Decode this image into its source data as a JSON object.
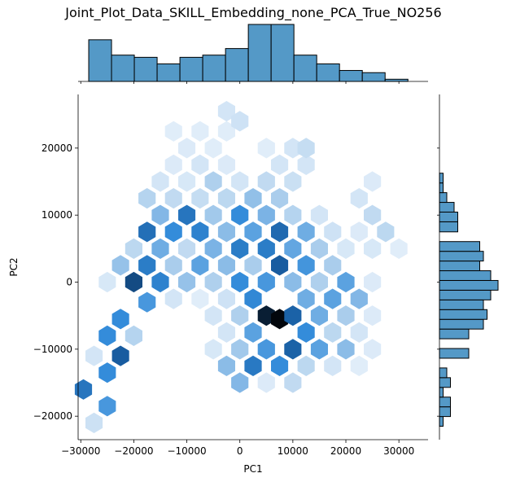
{
  "chart_data": {
    "type": "heatmap",
    "subtype": "hexbin joint plot with marginal histograms",
    "title": "Joint_Plot_Data_SKILL_Embedding_none_PCA_True_NO256",
    "xlabel": "PC1",
    "ylabel": "PC2",
    "xlim": [
      -30500,
      35500
    ],
    "ylim": [
      -23500,
      28000
    ],
    "xticks": [
      -30000,
      -20000,
      -10000,
      0,
      10000,
      20000,
      30000
    ],
    "xtick_labels": [
      "−30000",
      "−20000",
      "−10000",
      "0",
      "10000",
      "20000",
      "30000"
    ],
    "yticks": [
      -20000,
      -10000,
      0,
      10000,
      20000
    ],
    "ytick_labels": [
      "−20000",
      "−10000",
      "0",
      "10000",
      "20000"
    ],
    "colors": {
      "bar": "#5499c7",
      "hex_max": "#03070d",
      "hex_mid": "#2b8cde",
      "hex_min": "#eef5fc"
    },
    "marginal_x": {
      "bins": [
        -28500,
        -24200,
        -19900,
        -15600,
        -11300,
        -7000,
        -2700,
        1600,
        5900,
        10200,
        14500,
        18800,
        23100,
        27400,
        31700
      ],
      "counts": [
        19,
        12,
        11,
        8,
        11,
        12,
        15,
        26,
        26,
        12,
        8,
        5,
        4,
        1
      ]
    },
    "marginal_y": {
      "bins": [
        -21500,
        -20050,
        -18600,
        -17150,
        -15700,
        -14250,
        -12800,
        -11350,
        -9900,
        -8450,
        -7000,
        -5550,
        -4100,
        -2650,
        -1200,
        250,
        1700,
        3150,
        4600,
        6050,
        7500,
        9000,
        10450,
        11900,
        13350,
        14800,
        16250,
        17700,
        19150,
        20600,
        22050,
        23500
      ],
      "counts": [
        1,
        3,
        3,
        1,
        3,
        2,
        0,
        8,
        0,
        8,
        12,
        13,
        12,
        14,
        16,
        14,
        11,
        12,
        11,
        0,
        5,
        5,
        4,
        2,
        1,
        1,
        0,
        0,
        0,
        0,
        0
      ]
    },
    "hexbins": [
      {
        "x": -27500,
        "y": -21000,
        "d": 0.15
      },
      {
        "x": -29500,
        "y": -16000,
        "d": 0.72
      },
      {
        "x": -25000,
        "y": -18500,
        "d": 0.55
      },
      {
        "x": -27500,
        "y": -11000,
        "d": 0.12
      },
      {
        "x": -25000,
        "y": -13500,
        "d": 0.6
      },
      {
        "x": -22500,
        "y": -11000,
        "d": 0.85
      },
      {
        "x": -25000,
        "y": -8000,
        "d": 0.6
      },
      {
        "x": -20000,
        "y": -8000,
        "d": 0.25
      },
      {
        "x": -22500,
        "y": -5500,
        "d": 0.6
      },
      {
        "x": -17500,
        "y": -3000,
        "d": 0.55
      },
      {
        "x": -25000,
        "y": 0,
        "d": 0.1
      },
      {
        "x": -20000,
        "y": 0,
        "d": 0.88
      },
      {
        "x": -15000,
        "y": 0,
        "d": 0.65
      },
      {
        "x": -22500,
        "y": 2500,
        "d": 0.35
      },
      {
        "x": -17500,
        "y": 2500,
        "d": 0.68
      },
      {
        "x": -12500,
        "y": 2500,
        "d": 0.3
      },
      {
        "x": -20000,
        "y": 5000,
        "d": 0.22
      },
      {
        "x": -15000,
        "y": 5000,
        "d": 0.45
      },
      {
        "x": -10000,
        "y": 5000,
        "d": 0.2
      },
      {
        "x": -17500,
        "y": 7500,
        "d": 0.75
      },
      {
        "x": -12500,
        "y": 7500,
        "d": 0.6
      },
      {
        "x": -7500,
        "y": 7500,
        "d": 0.65
      },
      {
        "x": -15000,
        "y": 10000,
        "d": 0.4
      },
      {
        "x": -10000,
        "y": 10000,
        "d": 0.72
      },
      {
        "x": -5000,
        "y": 10000,
        "d": 0.32
      },
      {
        "x": -17500,
        "y": 12500,
        "d": 0.25
      },
      {
        "x": -12500,
        "y": 12500,
        "d": 0.2
      },
      {
        "x": -7500,
        "y": 12500,
        "d": 0.18
      },
      {
        "x": -2500,
        "y": 12500,
        "d": 0.22
      },
      {
        "x": -15000,
        "y": 15000,
        "d": 0.12
      },
      {
        "x": -10000,
        "y": 15000,
        "d": 0.1
      },
      {
        "x": -5000,
        "y": 15000,
        "d": 0.28
      },
      {
        "x": 0,
        "y": 15000,
        "d": 0.12
      },
      {
        "x": -12500,
        "y": 17500,
        "d": 0.08
      },
      {
        "x": -7500,
        "y": 17500,
        "d": 0.12
      },
      {
        "x": -2500,
        "y": 17500,
        "d": 0.08
      },
      {
        "x": -10000,
        "y": 20000,
        "d": 0.08
      },
      {
        "x": -5000,
        "y": 20000,
        "d": 0.06
      },
      {
        "x": -7500,
        "y": 22500,
        "d": 0.06
      },
      {
        "x": -2500,
        "y": 22500,
        "d": 0.06
      },
      {
        "x": -2500,
        "y": 25500,
        "d": 0.12
      },
      {
        "x": 0,
        "y": 24000,
        "d": 0.14
      },
      {
        "x": -12500,
        "y": 22500,
        "d": 0.06
      },
      {
        "x": -10000,
        "y": 0,
        "d": 0.35
      },
      {
        "x": -5000,
        "y": 0,
        "d": 0.28
      },
      {
        "x": -7500,
        "y": 2500,
        "d": 0.5
      },
      {
        "x": -2500,
        "y": 2500,
        "d": 0.38
      },
      {
        "x": -5000,
        "y": 5000,
        "d": 0.42
      },
      {
        "x": 0,
        "y": 5000,
        "d": 0.68
      },
      {
        "x": -2500,
        "y": 7500,
        "d": 0.38
      },
      {
        "x": 2500,
        "y": 7500,
        "d": 0.5
      },
      {
        "x": 0,
        "y": 10000,
        "d": 0.6
      },
      {
        "x": 5000,
        "y": 10000,
        "d": 0.42
      },
      {
        "x": 2500,
        "y": 12500,
        "d": 0.36
      },
      {
        "x": 7500,
        "y": 12500,
        "d": 0.3
      },
      {
        "x": 5000,
        "y": 15000,
        "d": 0.2
      },
      {
        "x": 10000,
        "y": 15000,
        "d": 0.16
      },
      {
        "x": 7500,
        "y": 17500,
        "d": 0.12
      },
      {
        "x": 12500,
        "y": 17500,
        "d": 0.12
      },
      {
        "x": 10000,
        "y": 20000,
        "d": 0.12
      },
      {
        "x": 12500,
        "y": 20000,
        "d": 0.18
      },
      {
        "x": 5000,
        "y": 20000,
        "d": 0.06
      },
      {
        "x": -2500,
        "y": -2500,
        "d": 0.14
      },
      {
        "x": -7500,
        "y": -2500,
        "d": 0.06
      },
      {
        "x": -12500,
        "y": -2500,
        "d": 0.12
      },
      {
        "x": 0,
        "y": 0,
        "d": 0.6
      },
      {
        "x": 2500,
        "y": 2500,
        "d": 0.3
      },
      {
        "x": 5000,
        "y": 5000,
        "d": 0.68
      },
      {
        "x": 7500,
        "y": 7500,
        "d": 0.78
      },
      {
        "x": 10000,
        "y": 5000,
        "d": 0.48
      },
      {
        "x": 12500,
        "y": 7500,
        "d": 0.45
      },
      {
        "x": 10000,
        "y": 10000,
        "d": 0.25
      },
      {
        "x": 15000,
        "y": 10000,
        "d": 0.12
      },
      {
        "x": 17500,
        "y": 7500,
        "d": 0.14
      },
      {
        "x": 15000,
        "y": 5000,
        "d": 0.3
      },
      {
        "x": 20000,
        "y": 5000,
        "d": 0.1
      },
      {
        "x": 22500,
        "y": 7500,
        "d": 0.08
      },
      {
        "x": 25000,
        "y": 10000,
        "d": 0.2
      },
      {
        "x": 22500,
        "y": 12500,
        "d": 0.12
      },
      {
        "x": 25000,
        "y": 15000,
        "d": 0.08
      },
      {
        "x": 27500,
        "y": 7500,
        "d": 0.22
      },
      {
        "x": 25000,
        "y": 5000,
        "d": 0.1
      },
      {
        "x": 30000,
        "y": 5000,
        "d": 0.06
      },
      {
        "x": 7500,
        "y": 2500,
        "d": 0.85
      },
      {
        "x": 2500,
        "y": -2500,
        "d": 0.62
      },
      {
        "x": 5000,
        "y": 0,
        "d": 0.55
      },
      {
        "x": 10000,
        "y": 0,
        "d": 0.38
      },
      {
        "x": 12500,
        "y": 2500,
        "d": 0.56
      },
      {
        "x": 15000,
        "y": 0,
        "d": 0.28
      },
      {
        "x": 12500,
        "y": -2500,
        "d": 0.45
      },
      {
        "x": 17500,
        "y": -2500,
        "d": 0.5
      },
      {
        "x": 17500,
        "y": 2500,
        "d": 0.3
      },
      {
        "x": 20000,
        "y": 0,
        "d": 0.5
      },
      {
        "x": 22500,
        "y": -2500,
        "d": 0.4
      },
      {
        "x": 25000,
        "y": 0,
        "d": 0.08
      },
      {
        "x": 5000,
        "y": -5000,
        "d": 0.96
      },
      {
        "x": 7500,
        "y": -5500,
        "d": 1.0
      },
      {
        "x": 0,
        "y": -5000,
        "d": 0.28
      },
      {
        "x": -5000,
        "y": -5000,
        "d": 0.12
      },
      {
        "x": -2500,
        "y": -7500,
        "d": 0.12
      },
      {
        "x": 2500,
        "y": -7500,
        "d": 0.5
      },
      {
        "x": 10000,
        "y": -5000,
        "d": 0.82
      },
      {
        "x": 12500,
        "y": -7500,
        "d": 0.6
      },
      {
        "x": 15000,
        "y": -5000,
        "d": 0.45
      },
      {
        "x": 20000,
        "y": -5000,
        "d": 0.3
      },
      {
        "x": 17500,
        "y": -7500,
        "d": 0.22
      },
      {
        "x": 22500,
        "y": -7500,
        "d": 0.12
      },
      {
        "x": 25000,
        "y": -5000,
        "d": 0.08
      },
      {
        "x": 0,
        "y": -10000,
        "d": 0.32
      },
      {
        "x": 5000,
        "y": -10000,
        "d": 0.55
      },
      {
        "x": 10000,
        "y": -10000,
        "d": 0.82
      },
      {
        "x": 15000,
        "y": -10000,
        "d": 0.5
      },
      {
        "x": 20000,
        "y": -10000,
        "d": 0.38
      },
      {
        "x": 25000,
        "y": -10000,
        "d": 0.08
      },
      {
        "x": 2500,
        "y": -12500,
        "d": 0.7
      },
      {
        "x": 7500,
        "y": -12500,
        "d": 0.6
      },
      {
        "x": 12500,
        "y": -12500,
        "d": 0.22
      },
      {
        "x": 17500,
        "y": -12500,
        "d": 0.12
      },
      {
        "x": 22500,
        "y": -12500,
        "d": 0.06
      },
      {
        "x": -2500,
        "y": -12500,
        "d": 0.38
      },
      {
        "x": 0,
        "y": -15000,
        "d": 0.4
      },
      {
        "x": 10000,
        "y": -15000,
        "d": 0.2
      },
      {
        "x": 5000,
        "y": -15000,
        "d": 0.08
      },
      {
        "x": -5000,
        "y": -10000,
        "d": 0.1
      }
    ]
  }
}
